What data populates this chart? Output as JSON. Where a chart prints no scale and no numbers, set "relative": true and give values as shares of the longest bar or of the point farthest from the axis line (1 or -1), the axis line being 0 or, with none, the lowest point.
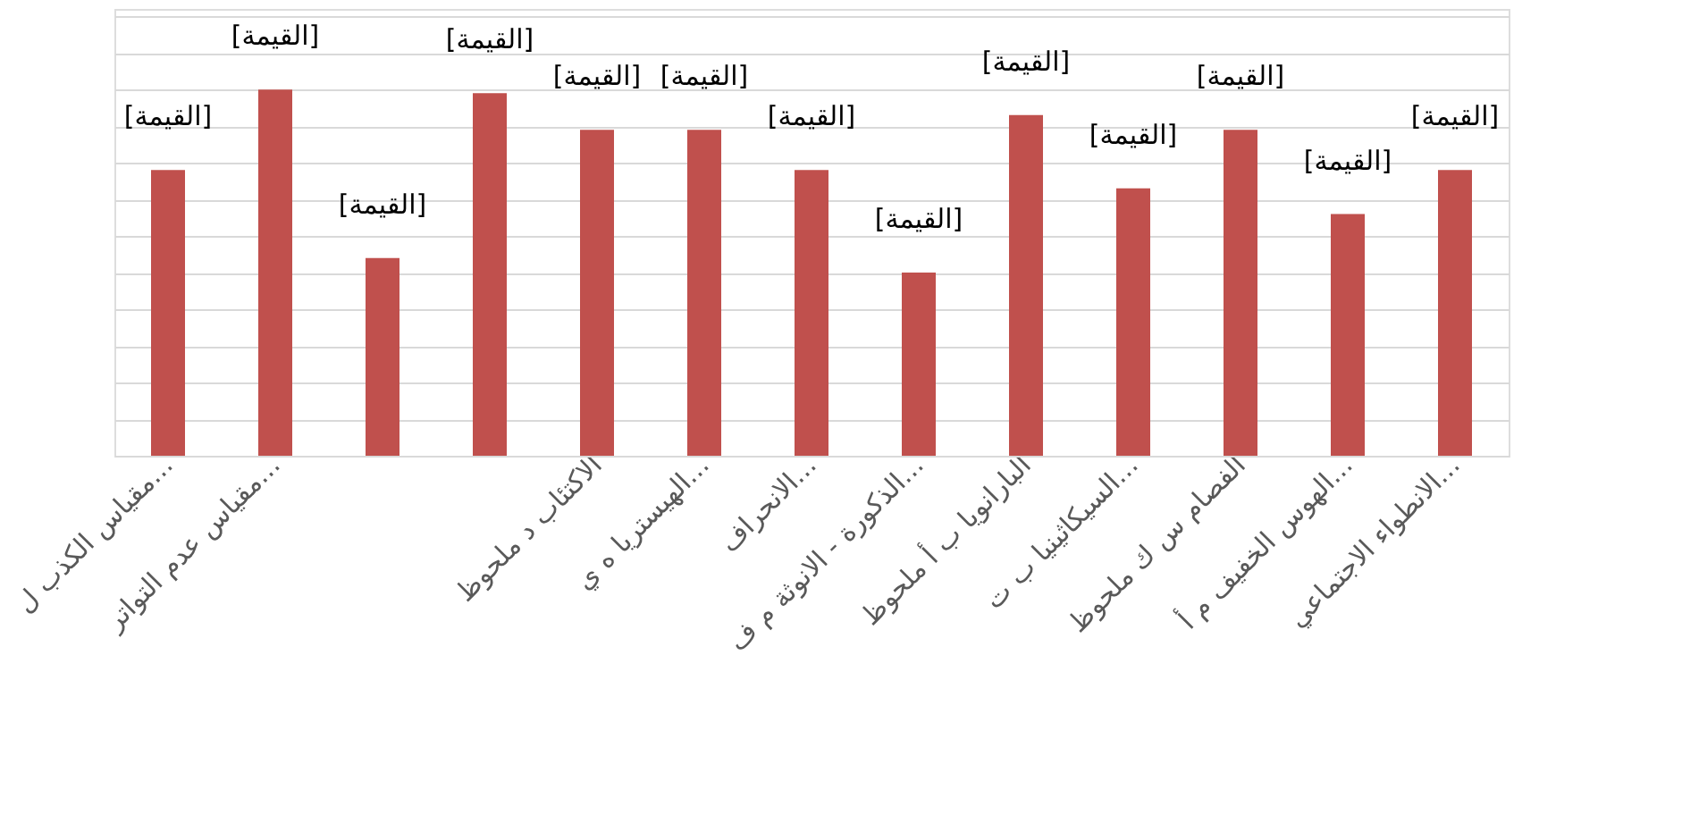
{
  "chart_data": {
    "type": "bar",
    "relative": true,
    "grid": "y",
    "color": "#c0504d",
    "categories": [
      "مقياس الكذب ل...",
      "مقياس عدم التواتر...",
      null,
      null,
      "الاكتئاب د ملحوظ",
      "الهيستريا ه ي...",
      "الانحراف...",
      "الذكورة - الانوثة م ف...",
      "البارانويا ب أ ملحوظ",
      "السيكاثينيا ب ت...",
      "الفصام س ك ملحوظ",
      "الهوس الخفيف م أ...",
      "الانطواء الاجتماعي..."
    ],
    "values": [
      0.78,
      1,
      0.54,
      0.99,
      0.89,
      0.89,
      0.78,
      0.5,
      0.93,
      0.73,
      0.89,
      0.66,
      0.78
    ],
    "annotations": [
      "[القيمة]",
      "[القيمة]",
      "[القيمة]",
      "[القيمة]",
      "[القيمة]",
      "[القيمة]",
      "[القيمة]",
      "[القيمة]",
      "[القيمة]",
      "[القيمة]",
      "[القيمة]",
      "[القيمة]",
      "[القيمة]"
    ]
  }
}
